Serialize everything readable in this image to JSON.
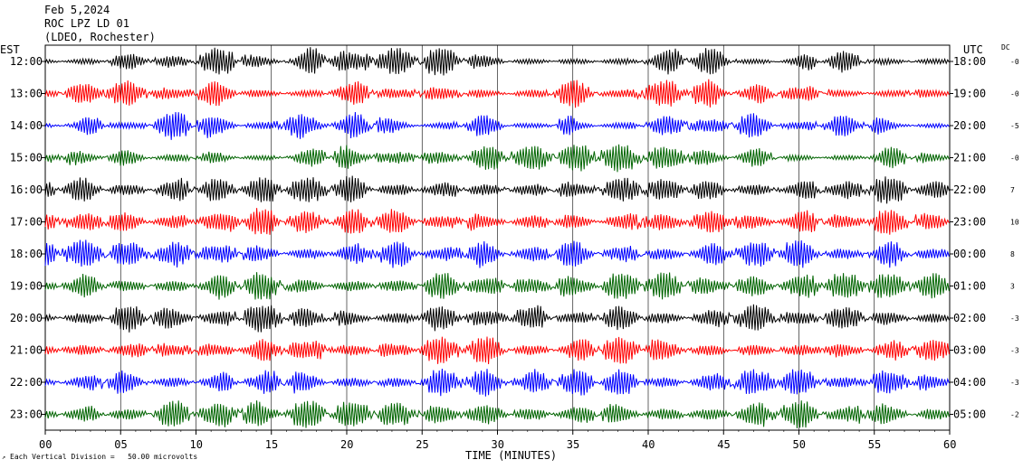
{
  "header": {
    "line1": "Feb 5,2024",
    "line2": "ROC LPZ LD 01",
    "line3": "(LDEO, Rochester)"
  },
  "left_tz": "EST",
  "right_tz": "UTC",
  "dc_label": "DC",
  "footer": {
    "scale_note": "Each Vertical Division =   50.00 microvolts",
    "scale_icon": "scale-mark"
  },
  "chart_data": {
    "type": "line",
    "title": "ROC LPZ LD 01",
    "xlabel": "TIME (MINUTES)",
    "x_ticks": [
      "00",
      "05",
      "10",
      "15",
      "20",
      "25",
      "30",
      "35",
      "40",
      "45",
      "50",
      "55",
      "60"
    ],
    "xlim": [
      0,
      60
    ],
    "trace_colors": [
      "#000000",
      "#ff0000",
      "#0000ff",
      "#006400"
    ],
    "rows": [
      {
        "est": "12:00",
        "utc": "18:00",
        "dc": "-0",
        "color": "#000000"
      },
      {
        "est": "13:00",
        "utc": "19:00",
        "dc": "-0",
        "color": "#ff0000"
      },
      {
        "est": "14:00",
        "utc": "20:00",
        "dc": "-5",
        "color": "#0000ff"
      },
      {
        "est": "15:00",
        "utc": "21:00",
        "dc": "-0",
        "color": "#006400"
      },
      {
        "est": "16:00",
        "utc": "22:00",
        "dc": "7",
        "color": "#000000"
      },
      {
        "est": "17:00",
        "utc": "23:00",
        "dc": "10",
        "color": "#ff0000"
      },
      {
        "est": "18:00",
        "utc": "00:00",
        "dc": "8",
        "color": "#0000ff"
      },
      {
        "est": "19:00",
        "utc": "01:00",
        "dc": "3",
        "color": "#006400"
      },
      {
        "est": "20:00",
        "utc": "02:00",
        "dc": "-3",
        "color": "#000000"
      },
      {
        "est": "21:00",
        "utc": "03:00",
        "dc": "-3",
        "color": "#ff0000"
      },
      {
        "est": "22:00",
        "utc": "04:00",
        "dc": "-3",
        "color": "#0000ff"
      },
      {
        "est": "23:00",
        "utc": "05:00",
        "dc": "-2",
        "color": "#006400"
      }
    ]
  }
}
